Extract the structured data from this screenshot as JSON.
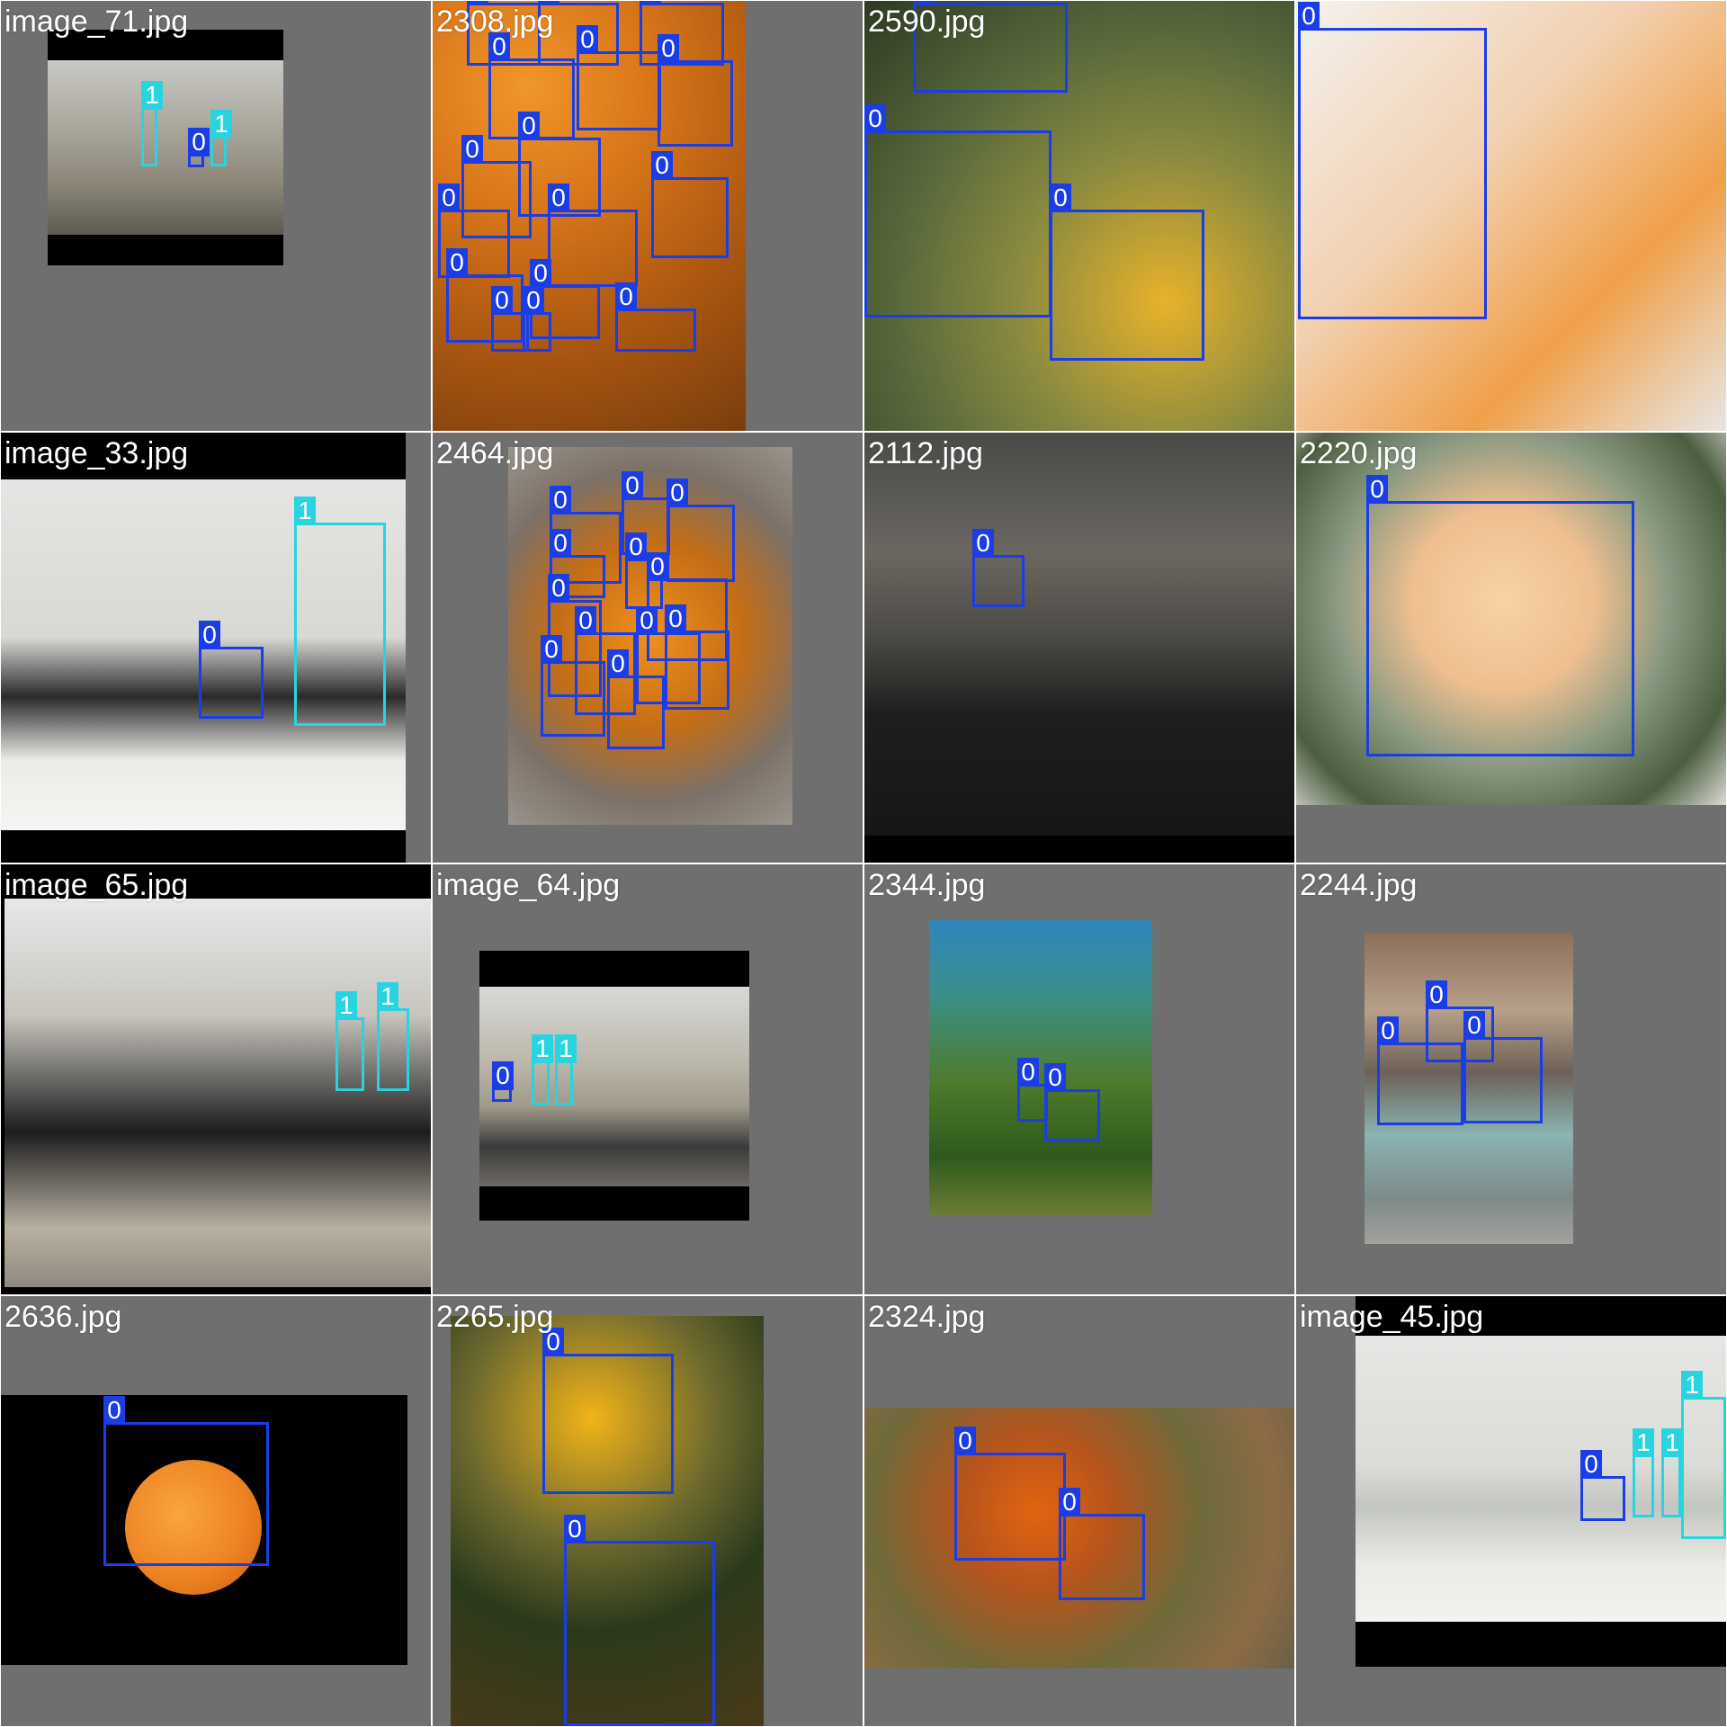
{
  "tiles": [
    {
      "filename": "image_71.jpg",
      "labels": [
        "1",
        "0",
        "1"
      ]
    },
    {
      "filename": "2308.jpg",
      "labels": [
        "0",
        "0",
        "0",
        "0",
        "0",
        "0",
        "0",
        "0",
        "0",
        "0",
        "0",
        "0",
        "0",
        "0",
        "0",
        "0"
      ]
    },
    {
      "filename": "2590.jpg",
      "labels": [
        "0",
        "0",
        "0"
      ]
    },
    {
      "filename": "",
      "labels": [
        "0"
      ]
    },
    {
      "filename": "image_33.jpg",
      "labels": [
        "0",
        "1"
      ]
    },
    {
      "filename": "2464.jpg",
      "labels": [
        "0",
        "0",
        "0",
        "0",
        "0",
        "0",
        "0",
        "0",
        "0",
        "0",
        "0",
        "0"
      ]
    },
    {
      "filename": "2112.jpg",
      "labels": [
        "0"
      ]
    },
    {
      "filename": "2220.jpg",
      "labels": [
        "0"
      ]
    },
    {
      "filename": "image_65.jpg",
      "labels": [
        "1",
        "1"
      ]
    },
    {
      "filename": "image_64.jpg",
      "labels": [
        "0",
        "1",
        "1"
      ]
    },
    {
      "filename": "2344.jpg",
      "labels": [
        "0",
        "0"
      ]
    },
    {
      "filename": "2244.jpg",
      "labels": [
        "0",
        "0",
        "0"
      ]
    },
    {
      "filename": "2636.jpg",
      "labels": [
        "0"
      ]
    },
    {
      "filename": "2265.jpg",
      "labels": [
        "0",
        "0"
      ]
    },
    {
      "filename": "2324.jpg",
      "labels": [
        "0",
        "0"
      ]
    },
    {
      "filename": "image_45.jpg",
      "labels": [
        "0",
        "1",
        "1",
        "1"
      ]
    }
  ],
  "colors": {
    "class_0_box": "#1a3de6",
    "class_1_box": "#29d4e0",
    "tile_background": "#6f6f6f",
    "letterbox": "#000000"
  }
}
